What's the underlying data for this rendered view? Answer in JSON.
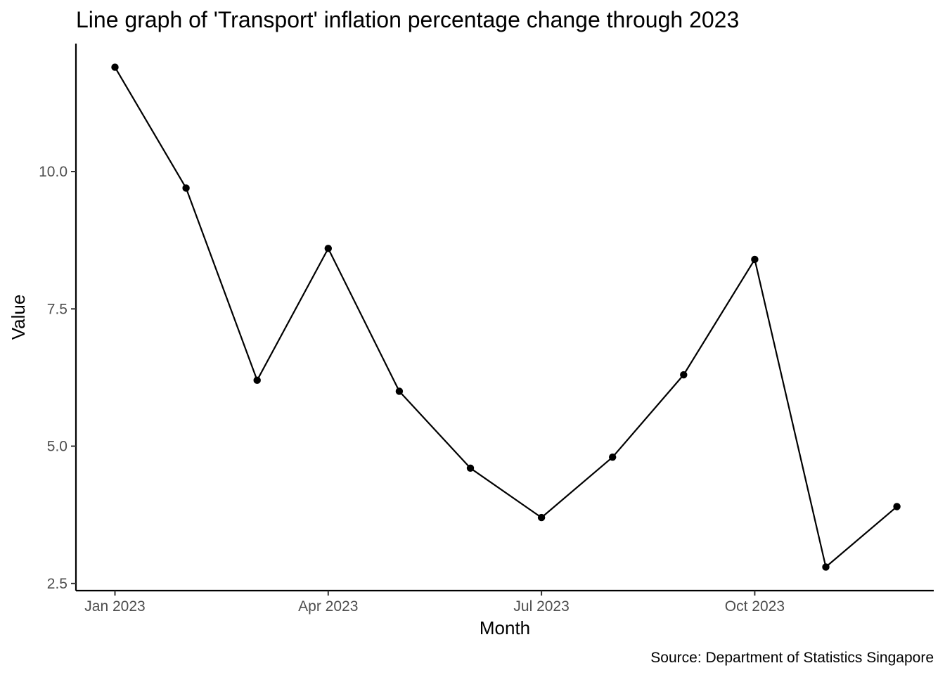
{
  "chart_data": {
    "type": "line",
    "title": "Line graph of 'Transport' inflation percentage change through 2023",
    "xlabel": "Month",
    "ylabel": "Value",
    "caption": "Source: Department of Statistics Singapore",
    "x": [
      "2023-01",
      "2023-02",
      "2023-03",
      "2023-04",
      "2023-05",
      "2023-06",
      "2023-07",
      "2023-08",
      "2023-09",
      "2023-10",
      "2023-11",
      "2023-12"
    ],
    "series": [
      {
        "values": [
          11.9,
          9.7,
          6.2,
          8.6,
          6.0,
          4.6,
          3.7,
          4.8,
          6.3,
          8.4,
          2.8,
          3.9
        ]
      }
    ],
    "x_ticks": [
      {
        "label": "Jan 2023",
        "index": 0
      },
      {
        "label": "Apr 2023",
        "index": 3
      },
      {
        "label": "Jul 2023",
        "index": 6
      },
      {
        "label": "Oct 2023",
        "index": 9
      }
    ],
    "y_ticks": [
      {
        "label": "2.5",
        "value": 2.5
      },
      {
        "label": "5.0",
        "value": 5.0
      },
      {
        "label": "7.5",
        "value": 7.5
      },
      {
        "label": "10.0",
        "value": 10.0
      }
    ],
    "ylim": [
      2.37,
      12.33
    ],
    "grid": false,
    "legend": "none",
    "line_color": "#000000",
    "point_color": "#000000",
    "tick_label_color": "#4d4d4d"
  }
}
